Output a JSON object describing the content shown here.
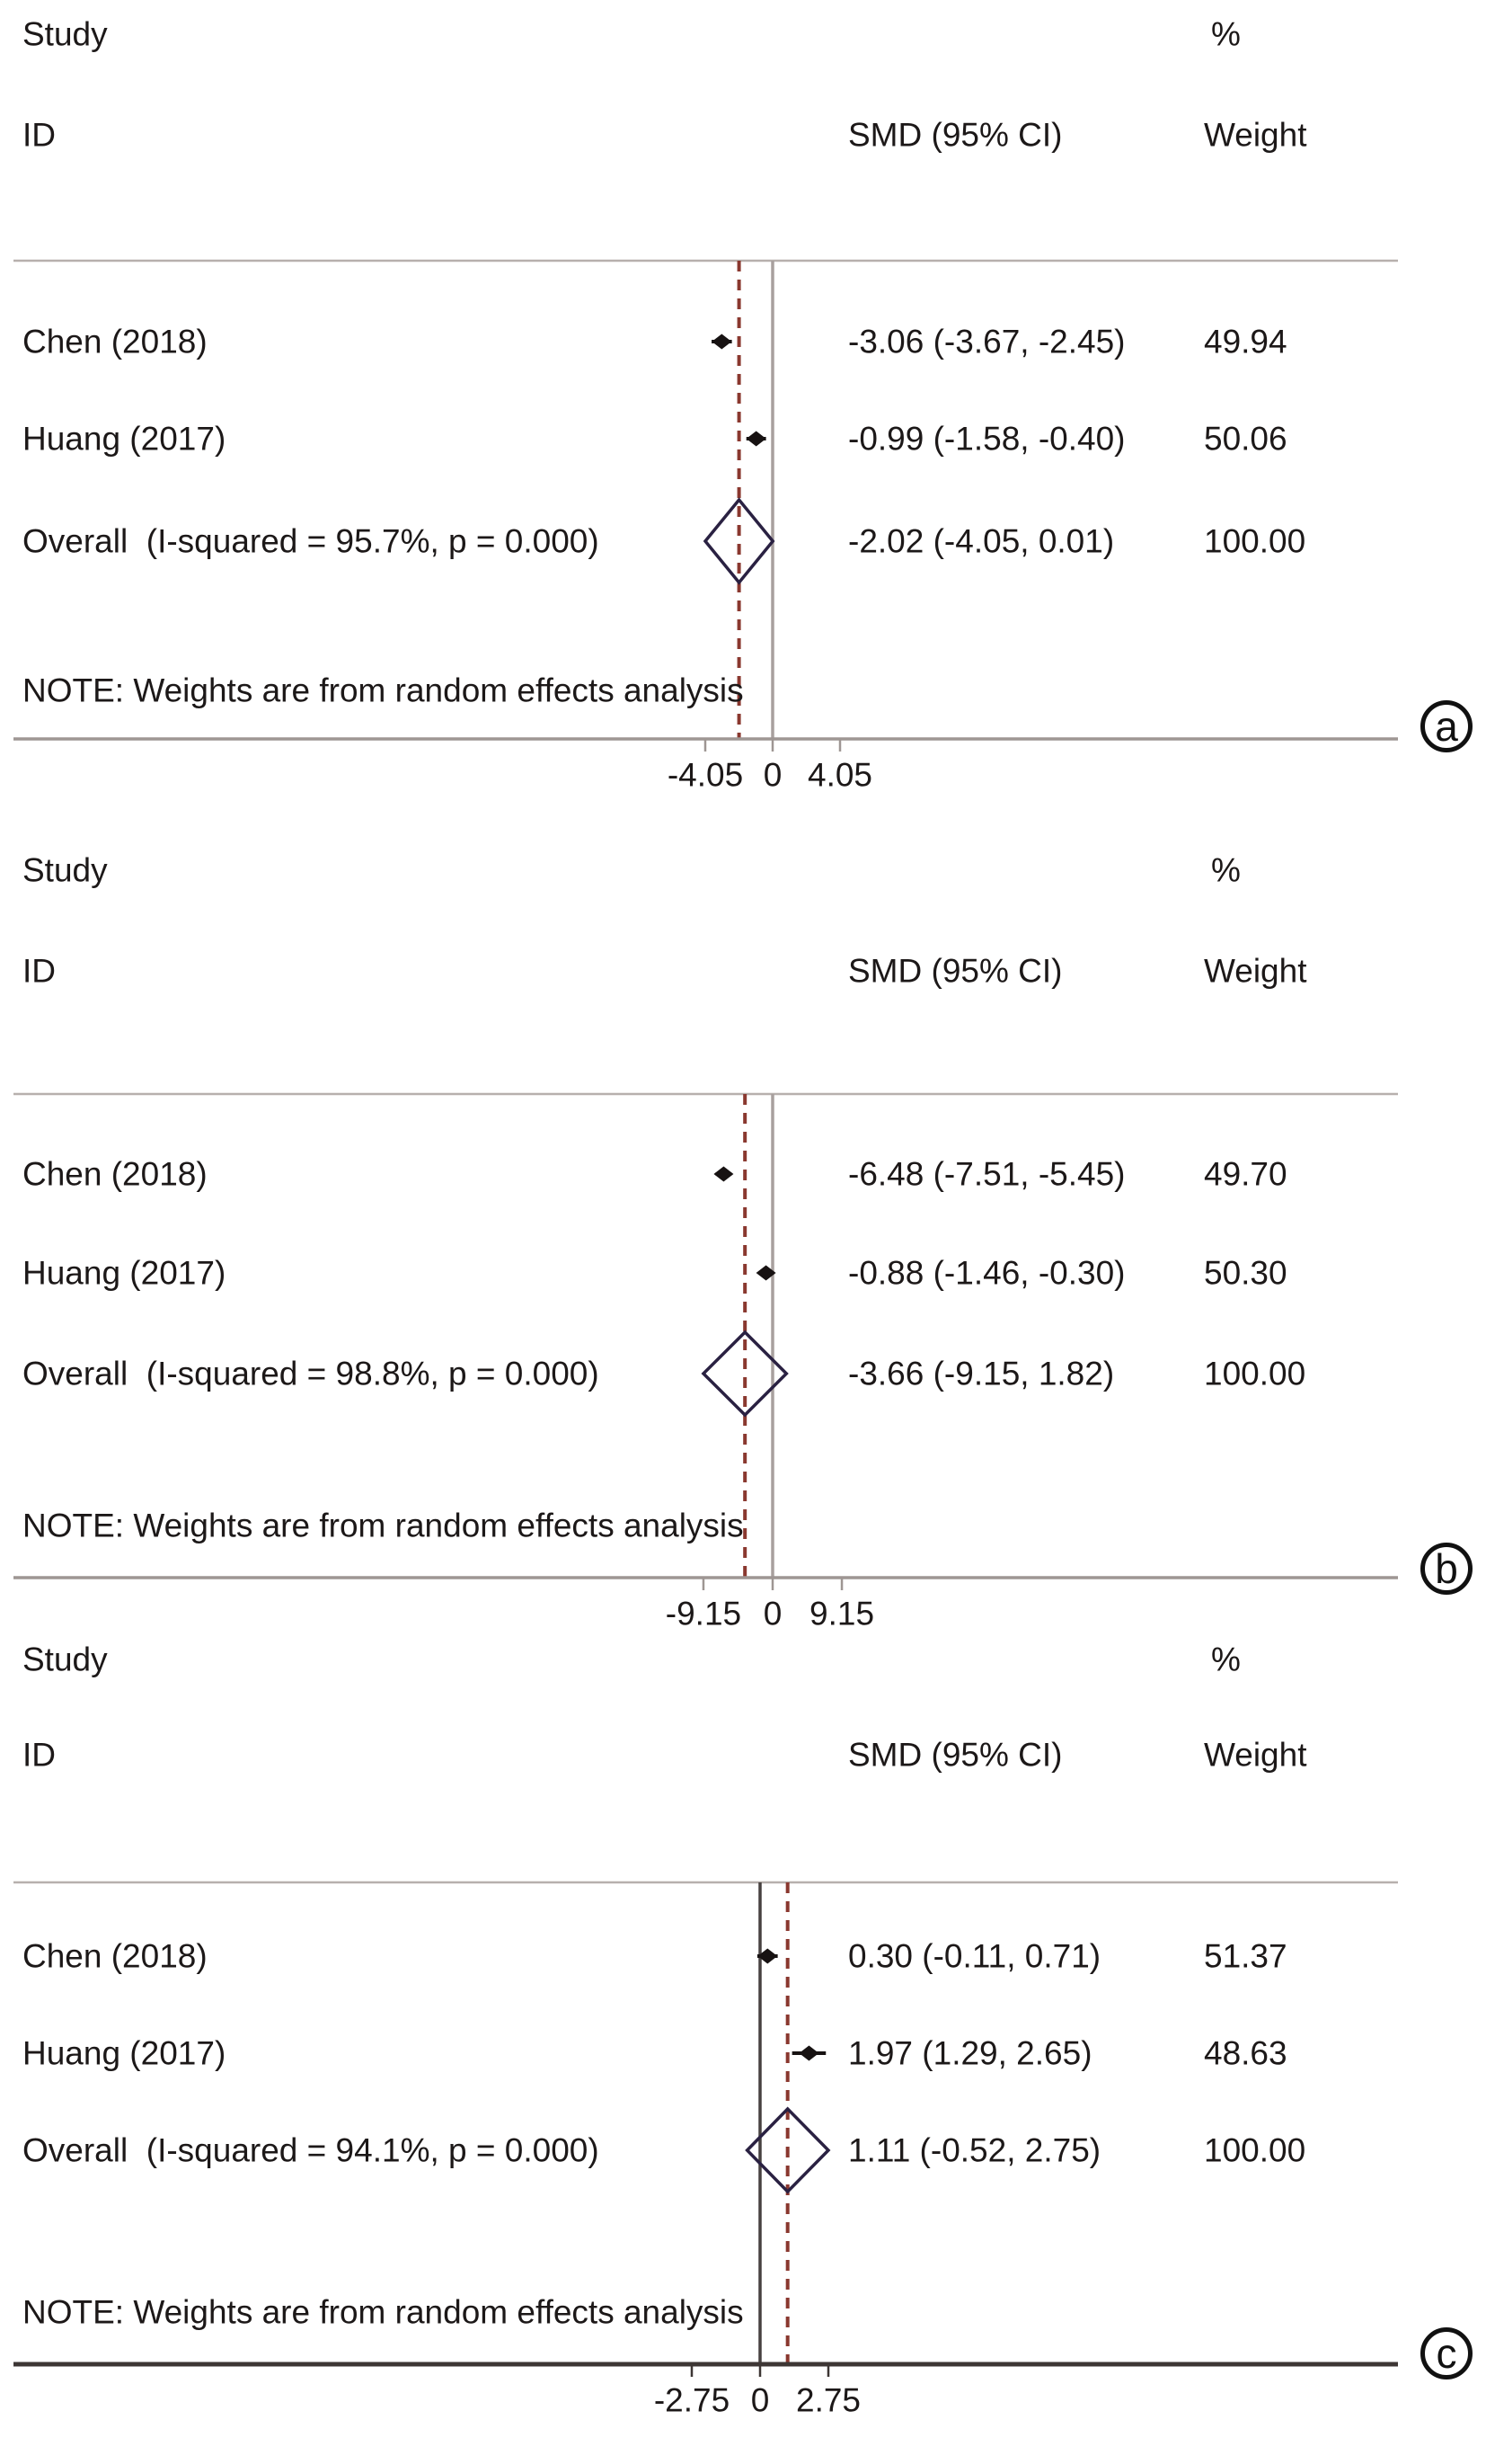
{
  "figure": {
    "header": {
      "study": "Study",
      "id": "ID",
      "percent": "%",
      "smd": "SMD (95% CI)",
      "weight": "Weight"
    },
    "note": "NOTE: Weights are from random effects analysis"
  },
  "colors": {
    "text": "#1c1818",
    "dashed_overall_line": "#8a382f",
    "overall_diamond": "#2a2142",
    "marker": "#171212",
    "rule": "#b7b0ad",
    "axis_gray": "#9e9693",
    "axis_dark": "#3d3634",
    "zero_line_gray": "#a8a09e",
    "zero_line_dark": "#474140",
    "badge": "#111111"
  },
  "chart_data": [
    {
      "type": "forest",
      "panel_label": "a",
      "effect_measure": "SMD",
      "model": "random effects",
      "studies": [
        {
          "id": "Chen (2018)",
          "est": -3.06,
          "ci_low": -3.67,
          "ci_high": -2.45,
          "smd_label": "-3.06 (-3.67, -2.45)",
          "weight_pct": "49.94"
        },
        {
          "id": "Huang (2017)",
          "est": -0.99,
          "ci_low": -1.58,
          "ci_high": -0.4,
          "smd_label": "-0.99 (-1.58, -0.40)",
          "weight_pct": "50.06"
        }
      ],
      "overall": {
        "id": "Overall  (I-squared = 95.7%, p = 0.000)",
        "i_squared": "95.7%",
        "p_value": "0.000",
        "est": -2.02,
        "ci_low": -4.05,
        "ci_high": 0.01,
        "smd_label": "-2.02 (-4.05, 0.01)",
        "weight_pct": "100.00"
      },
      "null_line_x": 0,
      "x_ticks": [
        -4.05,
        0,
        4.05
      ],
      "x_tick_labels": [
        "-4.05",
        "0",
        "4.05"
      ]
    },
    {
      "type": "forest",
      "panel_label": "b",
      "effect_measure": "SMD",
      "model": "random effects",
      "studies": [
        {
          "id": "Chen (2018)",
          "est": -6.48,
          "ci_low": -7.51,
          "ci_high": -5.45,
          "smd_label": "-6.48 (-7.51, -5.45)",
          "weight_pct": "49.70"
        },
        {
          "id": "Huang (2017)",
          "est": -0.88,
          "ci_low": -1.46,
          "ci_high": -0.3,
          "smd_label": "-0.88 (-1.46, -0.30)",
          "weight_pct": "50.30"
        }
      ],
      "overall": {
        "id": "Overall  (I-squared = 98.8%, p = 0.000)",
        "i_squared": "98.8%",
        "p_value": "0.000",
        "est": -3.66,
        "ci_low": -9.15,
        "ci_high": 1.82,
        "smd_label": "-3.66 (-9.15, 1.82)",
        "weight_pct": "100.00"
      },
      "null_line_x": 0,
      "x_ticks": [
        -9.15,
        0,
        9.15
      ],
      "x_tick_labels": [
        "-9.15",
        "0",
        "9.15"
      ]
    },
    {
      "type": "forest",
      "panel_label": "c",
      "effect_measure": "SMD",
      "model": "random effects",
      "studies": [
        {
          "id": "Chen (2018)",
          "est": 0.3,
          "ci_low": -0.11,
          "ci_high": 0.71,
          "smd_label": "0.30 (-0.11, 0.71)",
          "weight_pct": "51.37"
        },
        {
          "id": "Huang (2017)",
          "est": 1.97,
          "ci_low": 1.29,
          "ci_high": 2.65,
          "smd_label": "1.97 (1.29, 2.65)",
          "weight_pct": "48.63"
        }
      ],
      "overall": {
        "id": "Overall  (I-squared = 94.1%, p = 0.000)",
        "i_squared": "94.1%",
        "p_value": "0.000",
        "est": 1.11,
        "ci_low": -0.52,
        "ci_high": 2.75,
        "smd_label": "1.11 (-0.52, 2.75)",
        "weight_pct": "100.00"
      },
      "null_line_x": 0,
      "x_ticks": [
        -2.75,
        0,
        2.75
      ],
      "x_tick_labels": [
        "-2.75",
        "0",
        "2.75"
      ]
    }
  ]
}
